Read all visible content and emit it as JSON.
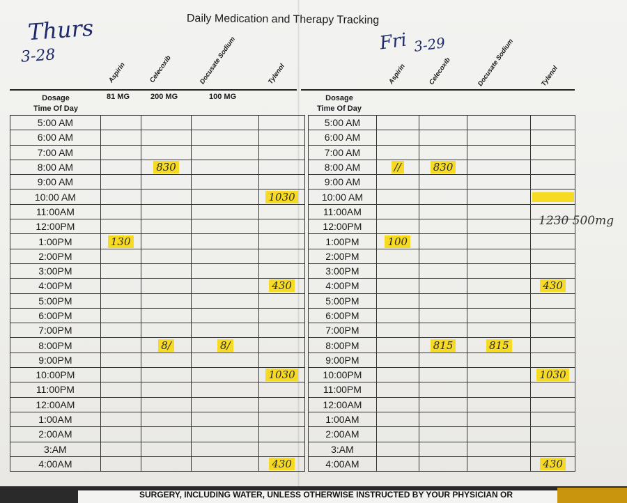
{
  "title": "Daily Medication and Therapy Tracking",
  "handwriting": {
    "day1": "Thurs",
    "date1": "3-28",
    "day2": "Fri",
    "date2": "3-29"
  },
  "medications": [
    {
      "name": "Aspirin",
      "dosage": "81 MG"
    },
    {
      "name": "Celecoxib",
      "dosage": "200 MG"
    },
    {
      "name": "Docusate Sodium",
      "dosage": "100 MG"
    },
    {
      "name": "Tylenol",
      "dosage": ""
    }
  ],
  "column_title_line1": "Dosage",
  "column_title_line2": "Time Of Day",
  "left_times": [
    "5:00 AM",
    "6:00 AM",
    "7:00 AM",
    "8:00 AM",
    "9:00 AM",
    "10:00 AM",
    "11:00AM",
    "12:00PM",
    "1:00PM",
    "2:00PM",
    "3:00PM",
    "4:00PM",
    "5:00PM",
    "6:00PM",
    "7:00PM",
    "8:00PM",
    "9:00PM",
    "10:00PM",
    "11:00PM",
    "12:00AM",
    "1:00AM",
    "2:00AM",
    "3:AM",
    "4:00AM"
  ],
  "right_times": [
    "5:00 AM",
    "6:00 AM",
    "7:00 AM",
    "8:00 AM",
    "9:00 AM",
    "10:00 AM",
    "11:00AM",
    "12:00PM",
    "1:00PM",
    "2:00PM",
    "3:00PM",
    "4:00PM",
    "5:00PM",
    "6:00PM",
    "7:00PM",
    "8:00PM",
    "9:00PM",
    "10:00PM",
    "11:00PM",
    "12:00AM",
    "1:00AM",
    "2:00AM",
    "3:AM",
    "4:00AM"
  ],
  "left_entries": [
    {
      "row": 3,
      "col": 1,
      "text": "830"
    },
    {
      "row": 5,
      "col": 3,
      "text": "1030"
    },
    {
      "row": 8,
      "col": 0,
      "text": "130"
    },
    {
      "row": 11,
      "col": 3,
      "text": "430"
    },
    {
      "row": 15,
      "col": 1,
      "text": "8/"
    },
    {
      "row": 15,
      "col": 2,
      "text": "8/"
    },
    {
      "row": 17,
      "col": 3,
      "text": "1030"
    },
    {
      "row": 23,
      "col": 3,
      "text": "430"
    }
  ],
  "right_entries": [
    {
      "row": 3,
      "col": 0,
      "text": "//"
    },
    {
      "row": 3,
      "col": 1,
      "text": "830"
    },
    {
      "row": 5,
      "col": 3,
      "text": ""
    },
    {
      "row": 8,
      "col": 0,
      "text": "100"
    },
    {
      "row": 11,
      "col": 3,
      "text": "430"
    },
    {
      "row": 15,
      "col": 1,
      "text": "815"
    },
    {
      "row": 15,
      "col": 2,
      "text": "815"
    },
    {
      "row": 17,
      "col": 3,
      "text": "1030"
    },
    {
      "row": 23,
      "col": 3,
      "text": "430"
    }
  ],
  "side_note": "1230 500mg",
  "footer": "SURGERY, INCLUDING WATER, UNLESS OTHERWISE INSTRUCTED BY YOUR PHYSICIAN OR",
  "colors": {
    "highlight": "#f7d600",
    "ink": "#1e2a6b"
  }
}
